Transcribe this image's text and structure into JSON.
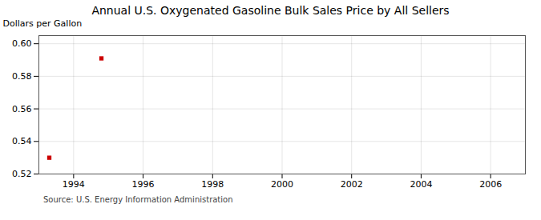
{
  "chart_data": {
    "type": "scatter",
    "title": "Annual U.S. Oxygenated Gasoline Bulk Sales Price by All Sellers",
    "ylabel": "Dollars per Gallon",
    "annotations": [
      "Source: U.S. Energy Information Administration"
    ],
    "x": [
      1993.3,
      1994.8
    ],
    "values": [
      0.53,
      0.591
    ],
    "color": "#cc0000",
    "marker": "square",
    "xlim": [
      1993.0,
      2007.0
    ],
    "ylim": [
      0.52,
      0.605
    ],
    "xticks": [
      1994,
      1996,
      1998,
      2000,
      2002,
      2004,
      2006
    ],
    "yticks": [
      {
        "value": 0.52,
        "label": "0.52"
      },
      {
        "value": 0.54,
        "label": "0.54"
      },
      {
        "value": 0.56,
        "label": "0.56"
      },
      {
        "value": 0.58,
        "label": "0.58"
      },
      {
        "value": 0.6,
        "label": "0.60"
      }
    ],
    "grid": true
  }
}
